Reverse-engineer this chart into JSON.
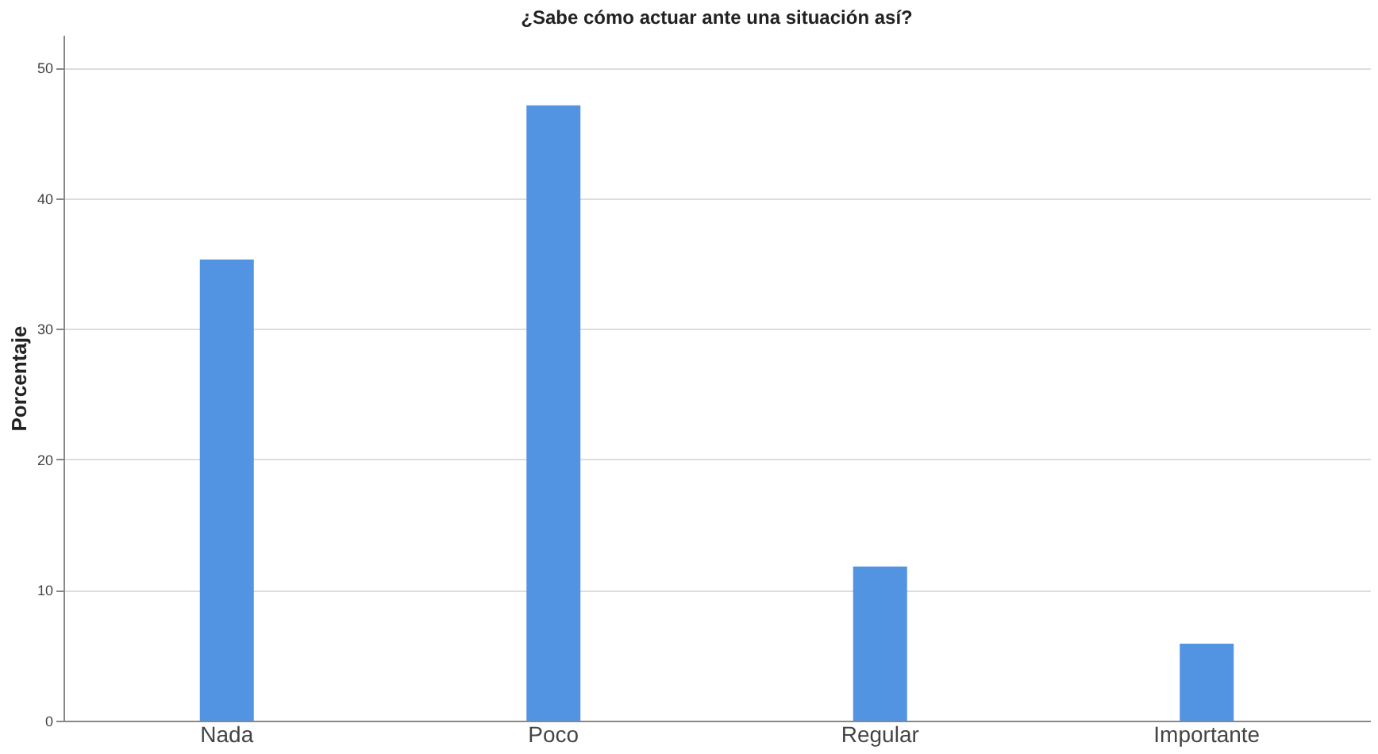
{
  "chart_data": {
    "type": "bar",
    "title": "¿Sabe cómo actuar ante una situación así?",
    "ylabel": "Porcentaje",
    "categories": [
      "Nada",
      "Poco",
      "Regular",
      "Importante"
    ],
    "values": [
      35.3,
      47.1,
      11.8,
      5.9
    ],
    "color": "#5294e2",
    "ylim": [
      0,
      52.5
    ],
    "yticks": [
      0,
      10,
      20,
      30,
      40,
      50
    ],
    "grid": "y"
  }
}
